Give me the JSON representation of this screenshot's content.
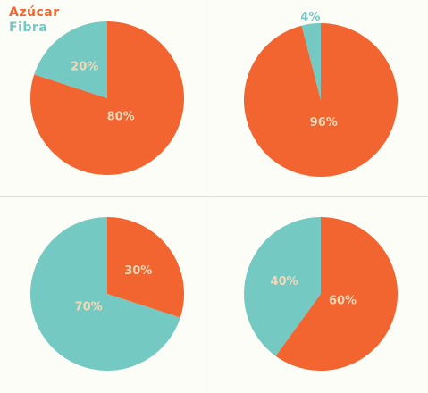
{
  "colors": {
    "sugar": "#f26430",
    "fiber": "#74c9c3",
    "label_on_slice": "#f3d9b8"
  },
  "legend": {
    "sugar_label": "Azúcar",
    "fiber_label": "Fibra"
  },
  "chart_data": [
    {
      "type": "pie",
      "slices": [
        {
          "name": "Azúcar",
          "value": 80,
          "label": "80%"
        },
        {
          "name": "Fibra",
          "value": 20,
          "label": "20%"
        }
      ],
      "start": "12 o'clock",
      "direction": "clockwise"
    },
    {
      "type": "pie",
      "slices": [
        {
          "name": "Azúcar",
          "value": 96,
          "label": "96%"
        },
        {
          "name": "Fibra",
          "value": 4,
          "label": "4%"
        }
      ],
      "start": "12 o'clock",
      "direction": "clockwise"
    },
    {
      "type": "pie",
      "slices": [
        {
          "name": "Azúcar",
          "value": 30,
          "label": "30%"
        },
        {
          "name": "Fibra",
          "value": 70,
          "label": "70%"
        }
      ],
      "start": "12 o'clock",
      "direction": "clockwise"
    },
    {
      "type": "pie",
      "slices": [
        {
          "name": "Azúcar",
          "value": 60,
          "label": "60%"
        },
        {
          "name": "Fibra",
          "value": 40,
          "label": "40%"
        }
      ],
      "start": "12 o'clock",
      "direction": "clockwise"
    }
  ]
}
